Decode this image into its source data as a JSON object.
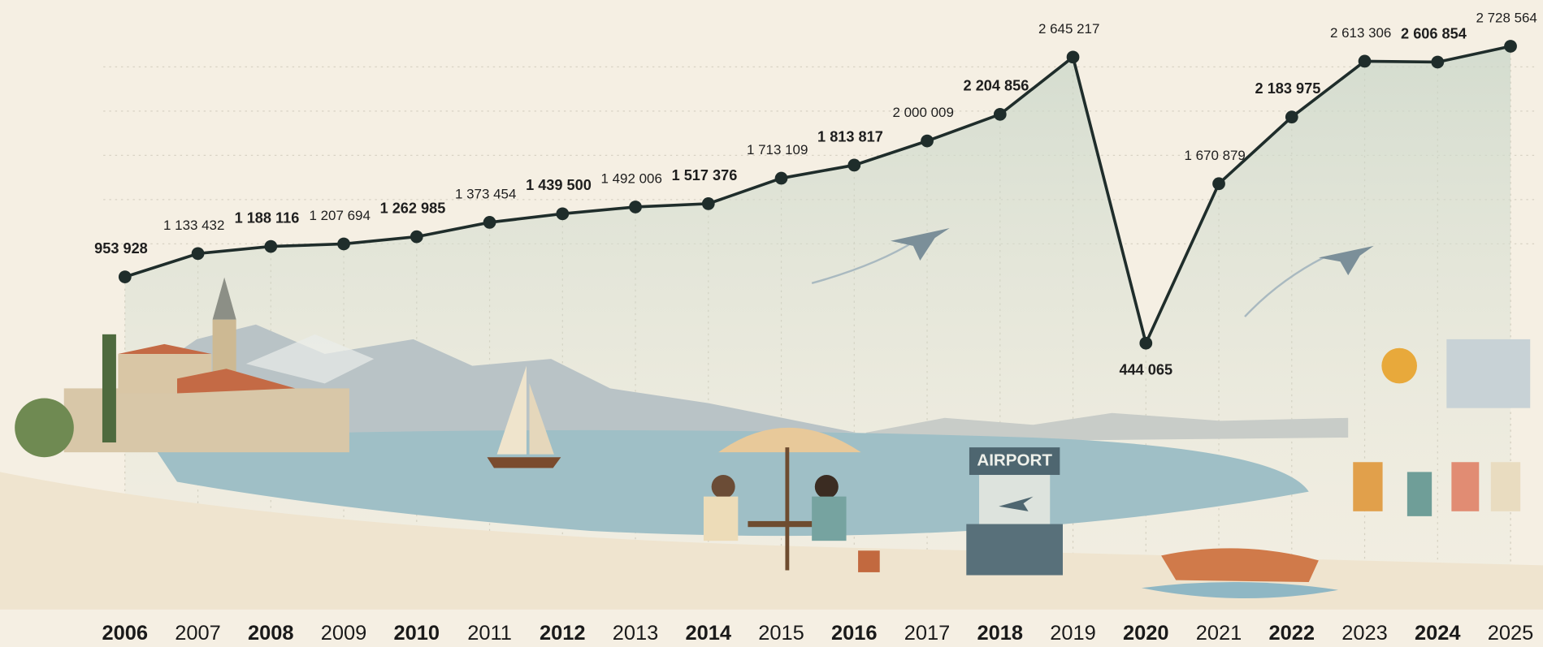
{
  "chart_data": {
    "type": "line",
    "categories": [
      "2006",
      "2007",
      "2008",
      "2009",
      "2010",
      "2011",
      "2012",
      "2013",
      "2014",
      "2015",
      "2016",
      "2017",
      "2018",
      "2019",
      "2020",
      "2021",
      "2022",
      "2023",
      "2024",
      "2025"
    ],
    "series": [
      {
        "color": "#1f2d2b",
        "values": [
          953928,
          1133432,
          1188116,
          1207694,
          1262985,
          1373454,
          1439500,
          1492006,
          1517376,
          1713109,
          1813817,
          2000009,
          2204856,
          2645217,
          444065,
          1670879,
          2183975,
          2613306,
          2606854,
          2728564
        ],
        "value_labels": [
          "953 928",
          "1 133 432",
          "1 188 116",
          "1 207 694",
          "1 262 985",
          "1 373 454",
          "1 439 500",
          "1 492 006",
          "1 517 376",
          "1 713 109",
          "1 813 817",
          "2 000 009",
          "2 204 856",
          "2 645 217",
          "444 065",
          "1 670 879",
          "2 183 975",
          "2 613 306",
          "2 606 854",
          "2 728 564"
        ]
      }
    ]
  },
  "illustration": {
    "airport_sign": "AIRPORT"
  }
}
